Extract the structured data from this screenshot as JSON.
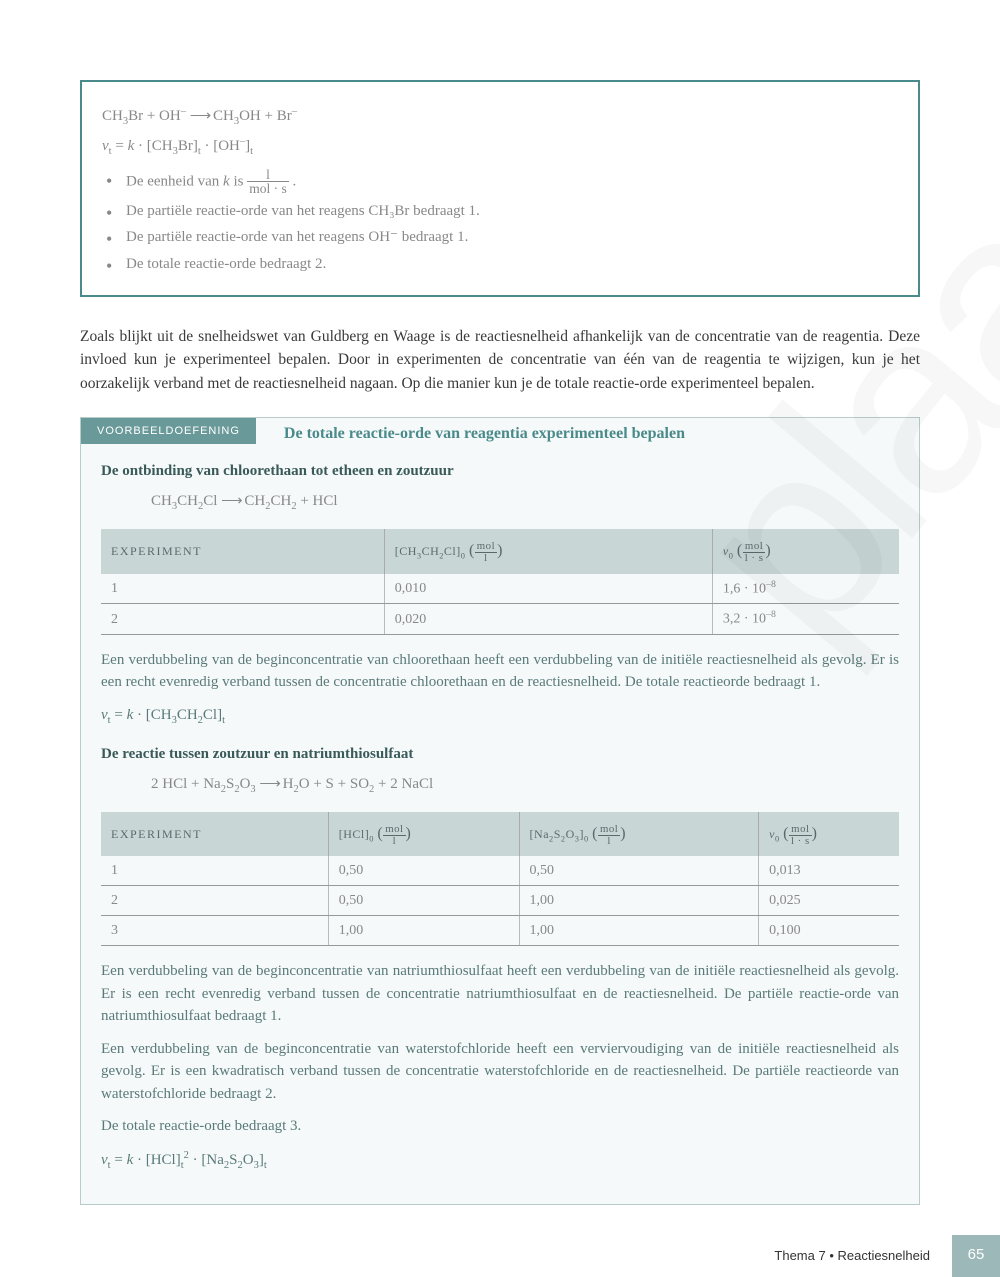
{
  "watermark": "plaar",
  "topbox": {
    "eq1": "CH₃Br + OH⁻ ⟶ CH₃OH + Br⁻",
    "eq2_lhs": "v",
    "eq2_sub": "t",
    "eq2_mid": " = k · [CH₃Br]",
    "eq2_sub2": "t",
    "eq2_mid2": " · [OH⁻]",
    "eq2_sub3": "t",
    "bullets": [
      {
        "pre": "De eenheid van ",
        "k": "k",
        "mid": " is ",
        "frac_num": "l",
        "frac_den": "mol · s",
        "post": " ."
      },
      "De partiële reactie-orde van het reagens CH₃Br bedraagt 1.",
      "De partiële reactie-orde van het reagens OH⁻ bedraagt 1.",
      "De totale reactie-orde bedraagt 2."
    ]
  },
  "body_para": "Zoals blijkt uit de snelheidswet van Guldberg en Waage is de reactiesnelheid afhankelijk van de concentratie van de reagentia. Deze invloed kun je experimenteel bepalen. Door in experimenten de concentratie van één van de reagentia te wijzigen, kun je het oorzakelijk verband met de reactiesnelheid nagaan. Op die manier kun je de totale reactie-orde experimenteel bepalen.",
  "exercise": {
    "tag": "VOORBEELDOEFENING",
    "title": "De totale reactie-orde van reagentia experimenteel bepalen",
    "sub1": "De ontbinding van chloorethaan tot etheen en zoutzuur",
    "eq1": "CH₃CH₂Cl ⟶ CH₂CH₂ + HCl",
    "table1": {
      "head": [
        "EXPERIMENT",
        "[CH₃CH₂Cl]₀ ( mol / l )",
        "v₀ ( mol / l · s )"
      ],
      "rows": [
        [
          "1",
          "0,010",
          "1,6 · 10⁻⁸"
        ],
        [
          "2",
          "0,020",
          "3,2 · 10⁻⁸"
        ]
      ]
    },
    "para1": "Een verdubbeling van de beginconcentratie van chloorethaan heeft een verdubbeling van de initiële reactiesnelheid als gevolg. Er is een recht evenredig verband tussen de concentratie chloorethaan en de reactiesnelheid. De totale reactieorde bedraagt 1.",
    "eq2": "vₜ = k · [CH₃CH₂Cl]ₜ",
    "sub2": "De reactie tussen zoutzuur en natriumthiosulfaat",
    "eq3": "2 HCl + Na₂S₂O₃ ⟶ H₂O + S + SO₂ + 2 NaCl",
    "table2": {
      "head": [
        "EXPERIMENT",
        "[HCl]₀ ( mol / l )",
        "[Na₂S₂O₃]₀ ( mol / l )",
        "v₀ ( mol / l · s )"
      ],
      "rows": [
        [
          "1",
          "0,50",
          "0,50",
          "0,013"
        ],
        [
          "2",
          "0,50",
          "1,00",
          "0,025"
        ],
        [
          "3",
          "1,00",
          "1,00",
          "0,100"
        ]
      ]
    },
    "para2": "Een verdubbeling van de beginconcentratie van natriumthiosulfaat heeft een verdubbeling van de initiële reactiesnelheid als gevolg. Er is een recht evenredig verband tussen de concentratie natriumthiosulfaat en de reactiesnelheid. De partiële reactie-orde van natriumthiosulfaat bedraagt 1.",
    "para3": "Een verdubbeling van de beginconcentratie van waterstofchloride heeft een verviervoudiging van de initiële reactiesnelheid als gevolg. Er is een kwadratisch verband tussen de concentratie waterstofchloride en de reactiesnelheid. De partiële reactieorde van waterstofchloride bedraagt 2.",
    "para4": "De totale reactie-orde bedraagt 3.",
    "eq4": "vₜ = k · [HCl]ₜ² · [Na₂S₂O₃]ₜ"
  },
  "footer": {
    "text": "Thema 7 • Reactiesnelheid",
    "num": "65"
  }
}
